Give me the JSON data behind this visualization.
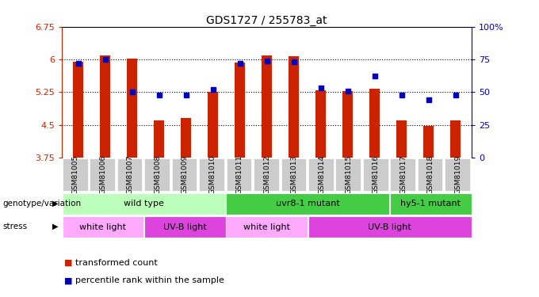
{
  "title": "GDS1727 / 255783_at",
  "samples": [
    "GSM81005",
    "GSM81006",
    "GSM81007",
    "GSM81008",
    "GSM81009",
    "GSM81010",
    "GSM81011",
    "GSM81012",
    "GSM81013",
    "GSM81014",
    "GSM81015",
    "GSM81016",
    "GSM81017",
    "GSM81018",
    "GSM81019"
  ],
  "bar_values": [
    5.95,
    6.1,
    6.02,
    4.6,
    4.65,
    5.25,
    5.93,
    6.1,
    6.08,
    5.3,
    5.27,
    5.32,
    4.6,
    4.47,
    4.6
  ],
  "dot_values_pct": [
    72,
    75,
    50,
    48,
    48,
    52,
    72,
    74,
    73,
    53,
    51,
    62,
    48,
    44,
    48
  ],
  "ylim": [
    3.75,
    6.75
  ],
  "yticks": [
    3.75,
    4.5,
    5.25,
    6.0,
    6.75
  ],
  "ytick_labels": [
    "3.75",
    "4.5",
    "5.25",
    "6",
    "6.75"
  ],
  "y2ticks": [
    0,
    25,
    50,
    75,
    100
  ],
  "y2tick_labels": [
    "0",
    "25",
    "50",
    "75",
    "100%"
  ],
  "bar_color": "#cc2200",
  "dot_color": "#0000bb",
  "genotype_groups": [
    {
      "label": "wild type",
      "start": 0,
      "end": 6,
      "color": "#bbffbb"
    },
    {
      "label": "uvr8-1 mutant",
      "start": 6,
      "end": 12,
      "color": "#44cc44"
    },
    {
      "label": "hy5-1 mutant",
      "start": 12,
      "end": 15,
      "color": "#44cc44"
    }
  ],
  "stress_groups": [
    {
      "label": "white light",
      "start": 0,
      "end": 3,
      "color": "#ffaaff"
    },
    {
      "label": "UV-B light",
      "start": 3,
      "end": 6,
      "color": "#dd44dd"
    },
    {
      "label": "white light",
      "start": 6,
      "end": 9,
      "color": "#ffaaff"
    },
    {
      "label": "UV-B light",
      "start": 9,
      "end": 15,
      "color": "#dd44dd"
    }
  ],
  "legend_items": [
    {
      "label": "transformed count",
      "color": "#cc2200"
    },
    {
      "label": "percentile rank within the sample",
      "color": "#0000bb"
    }
  ],
  "row_labels": [
    "genotype/variation",
    "stress"
  ],
  "ticklabel_bg": "#cccccc"
}
